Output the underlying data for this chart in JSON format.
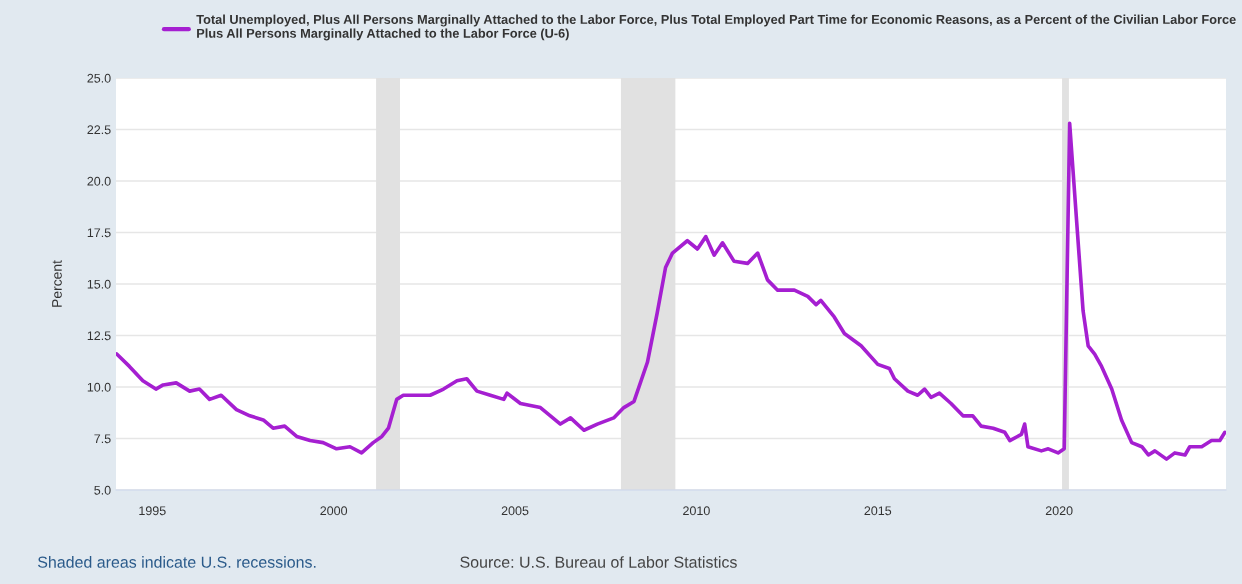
{
  "chart_data": {
    "type": "line",
    "ylabel": "Percent",
    "annotations": [
      "Shaded areas indicate U.S. recessions.",
      "Source: U.S. Bureau of Labor Statistics"
    ],
    "series": [
      {
        "name": "Total Unemployed, Plus All Persons Marginally Attached to the Labor Force, Plus Total Employed Part Time for Economic Reasons, as a Percent of the Civilian Labor Force Plus All Persons Marginally Attached to the Labor Force (U-6)",
        "color": "#a51fd1",
        "x": [
          1994.02,
          1994.37,
          1994.74,
          1995.1,
          1995.3,
          1995.66,
          1996.03,
          1996.3,
          1996.58,
          1996.9,
          1997.32,
          1997.69,
          1998.06,
          1998.33,
          1998.65,
          1998.98,
          1999.35,
          1999.71,
          2000.08,
          2000.45,
          2000.77,
          2001.09,
          2001.33,
          2001.51,
          2001.74,
          2001.92,
          2002.29,
          2002.66,
          2003.03,
          2003.4,
          2003.67,
          2003.95,
          2004.32,
          2004.69,
          2004.78,
          2005.15,
          2005.7,
          2006.25,
          2006.53,
          2006.9,
          2007.27,
          2007.72,
          2008.0,
          2008.28,
          2008.65,
          2008.92,
          2009.15,
          2009.34,
          2009.75,
          2010.03,
          2010.26,
          2010.49,
          2010.72,
          2011.04,
          2011.41,
          2011.69,
          2011.96,
          2012.24,
          2012.7,
          2013.07,
          2013.3,
          2013.43,
          2013.8,
          2014.08,
          2014.54,
          2015.0,
          2015.32,
          2015.46,
          2015.83,
          2016.1,
          2016.29,
          2016.47,
          2016.7,
          2017.02,
          2017.35,
          2017.62,
          2017.85,
          2018.18,
          2018.5,
          2018.64,
          2018.96,
          2019.05,
          2019.14,
          2019.51,
          2019.7,
          2019.97,
          2020.14,
          2020.29,
          2020.48,
          2020.66,
          2020.8,
          2020.98,
          2021.17,
          2021.45,
          2021.72,
          2022.0,
          2022.28,
          2022.46,
          2022.64,
          2022.96,
          2023.19,
          2023.47,
          2023.6,
          2023.93,
          2024.2,
          2024.43,
          2024.57
        ],
        "values": [
          11.6,
          11.0,
          10.3,
          9.9,
          10.1,
          10.2,
          9.8,
          9.9,
          9.4,
          9.6,
          8.9,
          8.6,
          8.4,
          8.0,
          8.1,
          7.6,
          7.4,
          7.3,
          7.0,
          7.1,
          6.8,
          7.3,
          7.6,
          8.0,
          9.4,
          9.6,
          9.6,
          9.6,
          9.9,
          10.3,
          10.4,
          9.8,
          9.6,
          9.4,
          9.7,
          9.2,
          9.0,
          8.2,
          8.5,
          7.9,
          8.2,
          8.5,
          9.0,
          9.3,
          11.2,
          13.6,
          15.8,
          16.5,
          17.1,
          16.7,
          17.3,
          16.4,
          17.0,
          16.1,
          16.0,
          16.5,
          15.2,
          14.7,
          14.7,
          14.4,
          14.0,
          14.2,
          13.4,
          12.6,
          12.0,
          11.1,
          10.9,
          10.4,
          9.8,
          9.6,
          9.9,
          9.5,
          9.7,
          9.2,
          8.6,
          8.6,
          8.1,
          8.0,
          7.8,
          7.4,
          7.7,
          8.2,
          7.1,
          6.9,
          7.0,
          6.8,
          7.0,
          22.8,
          18.1,
          13.7,
          12.0,
          11.6,
          11.0,
          9.9,
          8.4,
          7.3,
          7.1,
          6.7,
          6.9,
          6.5,
          6.8,
          6.7,
          7.1,
          7.1,
          7.4,
          7.4,
          7.8
        ]
      }
    ],
    "bands": [
      {
        "axis": "x",
        "from": 2001.17,
        "to": 2001.83,
        "color": "#e1e1e1"
      },
      {
        "axis": "x",
        "from": 2007.92,
        "to": 2009.42,
        "color": "#e1e1e1"
      },
      {
        "axis": "x",
        "from": 2020.08,
        "to": 2020.27,
        "color": "#e1e1e1"
      }
    ],
    "xlim": [
      1994,
      2024.6
    ],
    "xticks": [
      1995,
      2000,
      2005,
      2010,
      2015,
      2020
    ],
    "ylim": [
      5,
      25
    ],
    "yticks": [
      {
        "value": 5,
        "label": "5.0"
      },
      {
        "value": 7.5,
        "label": "7.5"
      },
      {
        "value": 10,
        "label": "10.0"
      },
      {
        "value": 12.5,
        "label": "12.5"
      },
      {
        "value": 15,
        "label": "15.0"
      },
      {
        "value": 17.5,
        "label": "17.5"
      },
      {
        "value": 20,
        "label": "20.0"
      },
      {
        "value": 22.5,
        "label": "22.5"
      },
      {
        "value": 25,
        "label": "25.0"
      }
    ],
    "grid": "y",
    "legend": "top",
    "marker": "none",
    "line_style": "solid"
  }
}
